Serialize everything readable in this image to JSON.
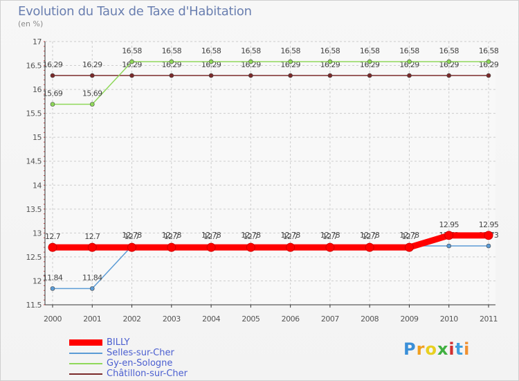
{
  "chart_data": {
    "type": "line",
    "title": "Evolution du Taux de Taxe d'Habitation",
    "subtitle": "(en %)",
    "x": [
      "2000",
      "2001",
      "2002",
      "2003",
      "2004",
      "2005",
      "2006",
      "2007",
      "2008",
      "2009",
      "2010",
      "2011"
    ],
    "ylim": [
      11.5,
      17
    ],
    "yticks": [
      "11.5",
      "12",
      "12.5",
      "13",
      "13.5",
      "14",
      "14.5",
      "15",
      "15.5",
      "16",
      "16.5",
      "17"
    ],
    "grid": true,
    "legend_position": "bottom-left",
    "series": [
      {
        "name": "BILLY",
        "color": "#ff0000",
        "values": [
          12.7,
          12.7,
          12.7,
          12.7,
          12.7,
          12.7,
          12.7,
          12.7,
          12.7,
          12.7,
          12.95,
          12.95
        ],
        "labels": [
          "12.7",
          "12.7",
          "12.7",
          "12.7",
          "12.7",
          "12.7",
          "12.7",
          "12.7",
          "12.7",
          "12.7",
          "12.95",
          "12.95"
        ]
      },
      {
        "name": "Selles-sur-Cher",
        "color": "#5b9bd5",
        "values": [
          11.84,
          11.84,
          12.73,
          12.73,
          12.73,
          12.73,
          12.73,
          12.73,
          12.73,
          12.73,
          12.73,
          12.73
        ],
        "labels": [
          "11.84",
          "11.84",
          "12.73",
          "12.73",
          "12.73",
          "12.73",
          "12.73",
          "12.73",
          "12.73",
          "12.73",
          "12.73",
          "12.73"
        ]
      },
      {
        "name": "Gy-en-Sologne",
        "color": "#8fd85a",
        "values": [
          15.69,
          15.69,
          16.58,
          16.58,
          16.58,
          16.58,
          16.58,
          16.58,
          16.58,
          16.58,
          16.58,
          16.58
        ],
        "labels": [
          "15.69",
          "15.69",
          "16.58",
          "16.58",
          "16.58",
          "16.58",
          "16.58",
          "16.58",
          "16.58",
          "16.58",
          "16.58",
          "16.58"
        ]
      },
      {
        "name": "Châtillon-sur-Cher",
        "color": "#7a2a2a",
        "values": [
          16.29,
          16.29,
          16.29,
          16.29,
          16.29,
          16.29,
          16.29,
          16.29,
          16.29,
          16.29,
          16.29,
          16.29
        ],
        "labels": [
          "16.29",
          "16.29",
          "16.29",
          "16.29",
          "16.29",
          "16.29",
          "16.29",
          "16.29",
          "16.29",
          "16.29",
          "16.29",
          "16.29"
        ]
      }
    ]
  },
  "legend": {
    "items": [
      "BILLY",
      "Selles-sur-Cher",
      "Gy-en-Sologne",
      "Châtillon-sur-Cher"
    ]
  },
  "logo": {
    "letters": [
      "P",
      "r",
      "o",
      "x",
      "i",
      "t",
      "i"
    ],
    "colors": [
      "#3a8fd8",
      "#f0a020",
      "#e8d020",
      "#40b040",
      "#d03030",
      "#40a0e0",
      "#f09030"
    ]
  }
}
